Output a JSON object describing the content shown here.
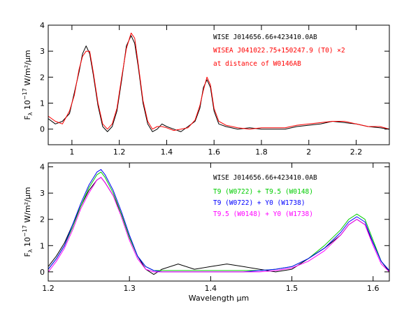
{
  "chart_data": [
    {
      "type": "line",
      "xlabel": "",
      "ylabel": "F_λ 10^-17 W/m²/μm",
      "ylabel_parts": {
        "main": "F",
        "sub": "λ",
        "unit": " 10",
        "exp": "−17",
        "rest": " W/m²/μm"
      },
      "xlim": [
        0.9,
        2.34
      ],
      "ylim": [
        -0.6,
        4.0
      ],
      "x_ticks": [
        1,
        1.2,
        1.4,
        1.6,
        1.8,
        2,
        2.2
      ],
      "x_tick_labels": [
        "1",
        "1.2",
        "1.4",
        "1.6",
        "1.8",
        "2",
        "2.2"
      ],
      "y_ticks": [
        0,
        1,
        2,
        3,
        4
      ],
      "y_tick_labels": [
        "0",
        "1",
        "2",
        "3",
        "4"
      ],
      "grid": false,
      "annotations": [
        {
          "text": "WISE J014656.66+423410.0AB",
          "color": "#000000"
        },
        {
          "text": "WISEA J041022.75+150247.9 (T0) ×2",
          "color": "#ff0000"
        },
        {
          "text": "at distance of W0146AB",
          "color": "#ff0000"
        }
      ],
      "series": [
        {
          "color": "#000000",
          "x": [
            0.9,
            0.93,
            0.96,
            0.99,
            1.01,
            1.03,
            1.045,
            1.06,
            1.075,
            1.09,
            1.11,
            1.13,
            1.15,
            1.17,
            1.19,
            1.21,
            1.23,
            1.25,
            1.265,
            1.28,
            1.3,
            1.32,
            1.34,
            1.36,
            1.38,
            1.4,
            1.43,
            1.46,
            1.49,
            1.52,
            1.54,
            1.555,
            1.57,
            1.585,
            1.6,
            1.62,
            1.65,
            1.7,
            1.75,
            1.8,
            1.85,
            1.9,
            1.95,
            2.0,
            2.05,
            2.1,
            2.15,
            2.2,
            2.25,
            2.3,
            2.34
          ],
          "y": [
            0.4,
            0.2,
            0.3,
            0.6,
            1.4,
            2.2,
            2.9,
            3.2,
            2.9,
            2.1,
            0.9,
            0.1,
            -0.1,
            0.1,
            0.7,
            1.9,
            3.2,
            3.6,
            3.3,
            2.4,
            1.0,
            0.2,
            -0.1,
            0.0,
            0.2,
            0.1,
            0.0,
            -0.1,
            0.1,
            0.3,
            0.8,
            1.6,
            1.9,
            1.6,
            0.7,
            0.2,
            0.1,
            0.0,
            0.05,
            0.0,
            0.0,
            0.0,
            0.1,
            0.15,
            0.2,
            0.3,
            0.25,
            0.2,
            0.1,
            0.05,
            0.0
          ]
        },
        {
          "color": "#ff0000",
          "x": [
            0.9,
            0.93,
            0.96,
            0.99,
            1.01,
            1.03,
            1.045,
            1.06,
            1.075,
            1.09,
            1.11,
            1.13,
            1.15,
            1.17,
            1.19,
            1.21,
            1.23,
            1.25,
            1.265,
            1.28,
            1.3,
            1.32,
            1.34,
            1.36,
            1.38,
            1.4,
            1.43,
            1.46,
            1.49,
            1.52,
            1.54,
            1.555,
            1.57,
            1.585,
            1.6,
            1.62,
            1.65,
            1.7,
            1.75,
            1.8,
            1.85,
            1.9,
            1.95,
            2.0,
            2.05,
            2.1,
            2.15,
            2.2,
            2.25,
            2.3,
            2.34
          ],
          "y": [
            0.5,
            0.3,
            0.2,
            0.7,
            1.3,
            2.3,
            2.8,
            3.0,
            3.0,
            2.2,
            1.0,
            0.2,
            0.0,
            0.2,
            0.8,
            2.0,
            3.1,
            3.7,
            3.5,
            2.5,
            1.1,
            0.3,
            0.0,
            0.1,
            0.1,
            0.05,
            -0.05,
            0.0,
            0.05,
            0.35,
            0.9,
            1.5,
            2.0,
            1.7,
            0.8,
            0.3,
            0.15,
            0.05,
            0.0,
            0.05,
            0.05,
            0.05,
            0.15,
            0.2,
            0.25,
            0.3,
            0.3,
            0.2,
            0.1,
            0.1,
            0.0
          ]
        }
      ]
    },
    {
      "type": "line",
      "xlabel": "Wavelength μm",
      "ylabel": "F_λ 10^-17 W/m²/μm",
      "ylabel_parts": {
        "main": "F",
        "sub": "λ",
        "unit": " 10",
        "exp": "−17",
        "rest": " W/m²/μm"
      },
      "xlim": [
        1.2,
        1.62
      ],
      "ylim": [
        -0.35,
        4.15
      ],
      "x_ticks": [
        1.2,
        1.3,
        1.4,
        1.5,
        1.6
      ],
      "x_tick_labels": [
        "1.2",
        "1.3",
        "1.4",
        "1.5",
        "1.6"
      ],
      "y_ticks": [
        0,
        1,
        2,
        3,
        4
      ],
      "y_tick_labels": [
        "0",
        "1",
        "2",
        "3",
        "4"
      ],
      "grid": false,
      "annotations": [
        {
          "text": "WISE J014656.66+423410.0AB",
          "color": "#000000"
        },
        {
          "text": "T9 (W0722) + T9.5 (W0148)",
          "color": "#00cc00"
        },
        {
          "text": "T9 (W0722) + Y0 (W1738)",
          "color": "#0000ff"
        },
        {
          "text": "T9.5 (W0148) + Y0 (W1738)",
          "color": "#ff00ff"
        }
      ],
      "series": [
        {
          "color": "#000000",
          "x": [
            1.2,
            1.21,
            1.22,
            1.23,
            1.24,
            1.25,
            1.26,
            1.265,
            1.27,
            1.28,
            1.29,
            1.3,
            1.31,
            1.32,
            1.33,
            1.34,
            1.36,
            1.38,
            1.4,
            1.42,
            1.44,
            1.46,
            1.48,
            1.5,
            1.52,
            1.54,
            1.56,
            1.57,
            1.58,
            1.59,
            1.6,
            1.61,
            1.62
          ],
          "y": [
            0.2,
            0.6,
            1.1,
            1.8,
            2.5,
            3.1,
            3.5,
            3.6,
            3.4,
            2.9,
            2.2,
            1.3,
            0.6,
            0.1,
            -0.1,
            0.1,
            0.3,
            0.1,
            0.2,
            0.3,
            0.2,
            0.1,
            0.0,
            0.1,
            0.5,
            0.9,
            1.4,
            1.8,
            2.0,
            1.8,
            1.1,
            0.4,
            0.0
          ]
        },
        {
          "color": "#00cc00",
          "x": [
            1.2,
            1.21,
            1.22,
            1.23,
            1.24,
            1.25,
            1.26,
            1.265,
            1.27,
            1.28,
            1.29,
            1.3,
            1.31,
            1.32,
            1.33,
            1.34,
            1.36,
            1.38,
            1.4,
            1.42,
            1.44,
            1.46,
            1.48,
            1.5,
            1.52,
            1.54,
            1.56,
            1.57,
            1.58,
            1.59,
            1.6,
            1.61,
            1.62
          ],
          "y": [
            0.1,
            0.5,
            1.0,
            1.7,
            2.5,
            3.2,
            3.7,
            3.8,
            3.6,
            3.0,
            2.2,
            1.3,
            0.6,
            0.2,
            0.05,
            0.05,
            0.05,
            0.05,
            0.05,
            0.05,
            0.05,
            0.05,
            0.1,
            0.2,
            0.5,
            1.0,
            1.6,
            2.0,
            2.2,
            2.0,
            1.2,
            0.4,
            0.05
          ]
        },
        {
          "color": "#0000ff",
          "x": [
            1.2,
            1.21,
            1.22,
            1.23,
            1.24,
            1.25,
            1.26,
            1.265,
            1.27,
            1.28,
            1.29,
            1.3,
            1.31,
            1.32,
            1.33,
            1.34,
            1.36,
            1.38,
            1.4,
            1.42,
            1.44,
            1.46,
            1.48,
            1.5,
            1.52,
            1.54,
            1.56,
            1.57,
            1.58,
            1.59,
            1.6,
            1.61,
            1.62
          ],
          "y": [
            0.1,
            0.5,
            1.0,
            1.8,
            2.6,
            3.3,
            3.8,
            3.9,
            3.7,
            3.1,
            2.3,
            1.4,
            0.6,
            0.2,
            0.05,
            0.0,
            0.0,
            0.0,
            0.0,
            0.0,
            0.0,
            0.05,
            0.1,
            0.2,
            0.5,
            0.9,
            1.5,
            1.9,
            2.1,
            1.9,
            1.1,
            0.4,
            0.05
          ]
        },
        {
          "color": "#ff00ff",
          "x": [
            1.2,
            1.21,
            1.22,
            1.23,
            1.24,
            1.25,
            1.26,
            1.265,
            1.27,
            1.28,
            1.29,
            1.3,
            1.31,
            1.32,
            1.33,
            1.34,
            1.36,
            1.38,
            1.4,
            1.42,
            1.44,
            1.46,
            1.48,
            1.5,
            1.52,
            1.54,
            1.56,
            1.57,
            1.58,
            1.59,
            1.6,
            1.61,
            1.62
          ],
          "y": [
            0.0,
            0.4,
            0.9,
            1.6,
            2.4,
            3.0,
            3.5,
            3.6,
            3.4,
            2.9,
            2.1,
            1.2,
            0.5,
            0.1,
            0.0,
            0.0,
            0.0,
            0.0,
            0.0,
            0.0,
            0.0,
            0.0,
            0.05,
            0.15,
            0.4,
            0.8,
            1.4,
            1.8,
            2.0,
            1.8,
            1.0,
            0.3,
            0.0
          ]
        }
      ]
    }
  ]
}
